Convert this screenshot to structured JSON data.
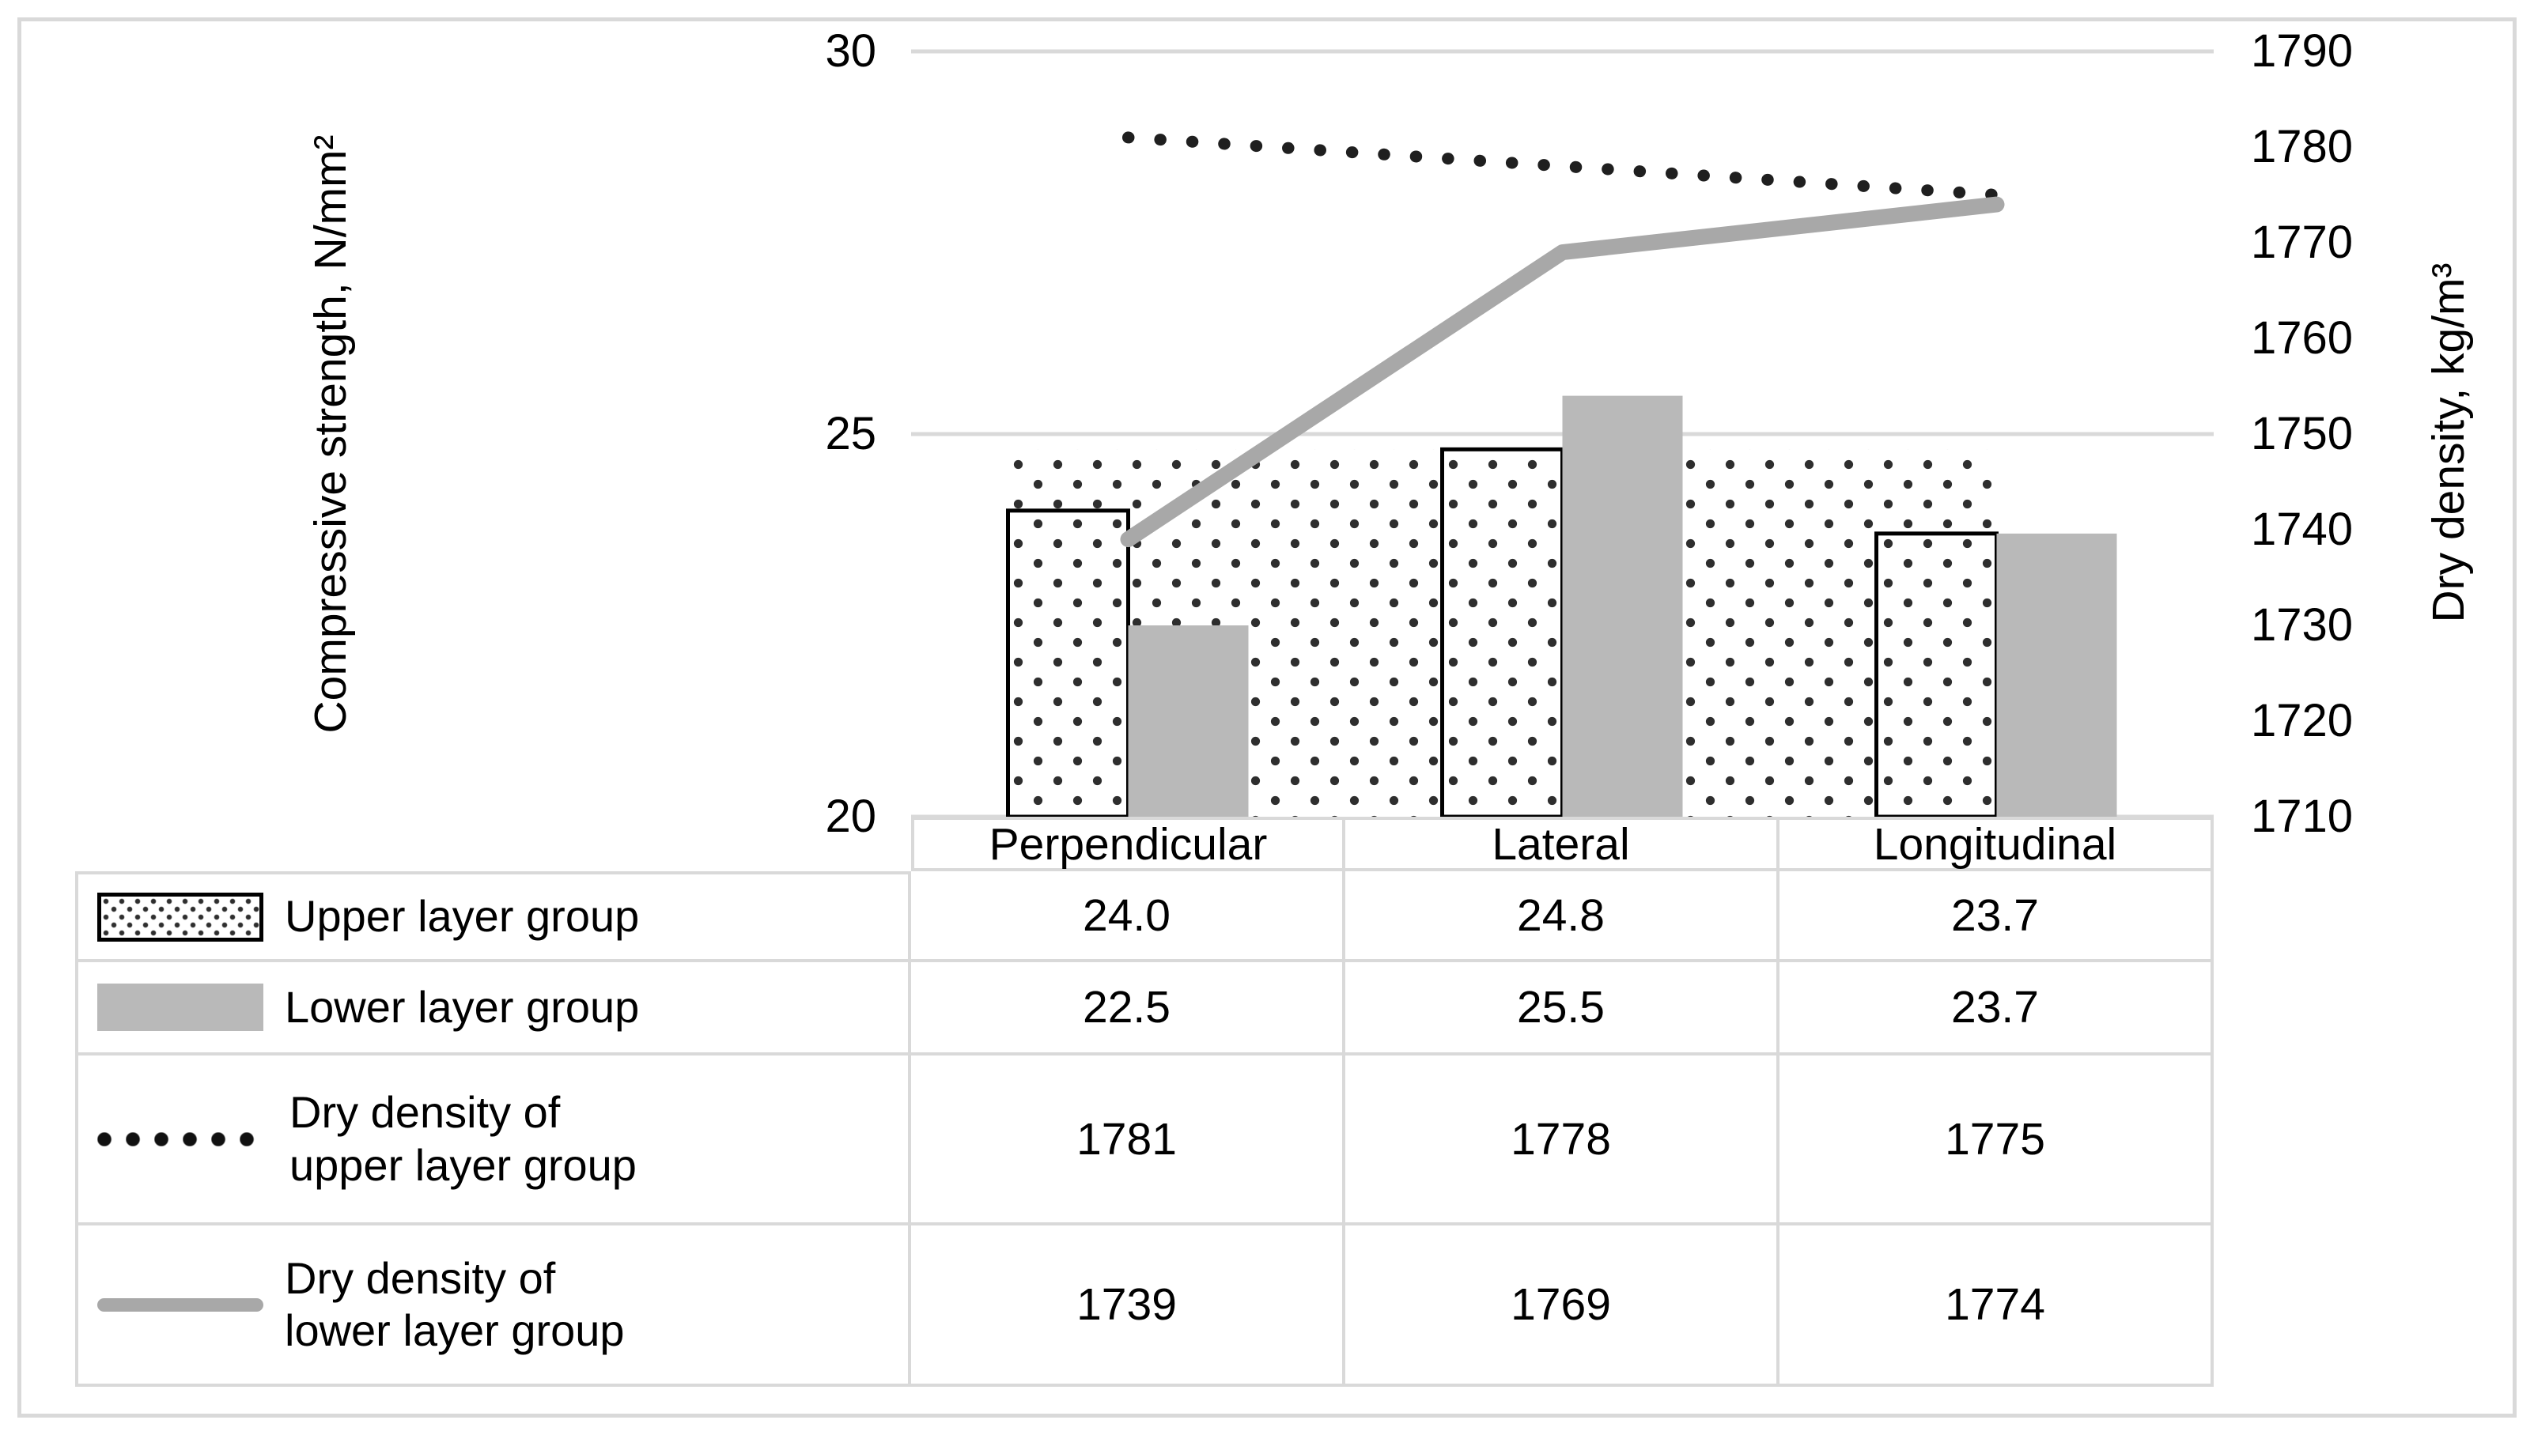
{
  "figure": {
    "background": "#ffffff",
    "border_color": "#d9d9d9"
  },
  "chart_data": {
    "type": "bar",
    "subtype": "combo bar + line, dual vertical axes, data table with legend keys below",
    "categories": [
      "Perpendicular",
      "Lateral",
      "Longitudinal"
    ],
    "left_axis": {
      "title": "Compressive strength, N/mm²",
      "min": 20,
      "max": 30,
      "tick_values": [
        30,
        25,
        20
      ],
      "tick_labels": [
        "30",
        "25",
        "20"
      ],
      "gridlines": true
    },
    "right_axis": {
      "title": "Dry density, kg/m³",
      "min": 1710,
      "max": 1790,
      "tick_values": [
        1790,
        1780,
        1770,
        1760,
        1750,
        1740,
        1730,
        1720,
        1710
      ],
      "tick_labels": [
        "1790",
        "1780",
        "1770",
        "1760",
        "1750",
        "1740",
        "1730",
        "1720",
        "1710"
      ]
    },
    "bar_series": [
      {
        "name": "Upper layer group",
        "axis": "left",
        "values": [
          24.0,
          24.8,
          23.7
        ],
        "display": [
          "24.0",
          "24.8",
          "23.7"
        ],
        "fill": "pattern-dots",
        "stroke": "#000000"
      },
      {
        "name": "Lower layer group",
        "axis": "left",
        "values": [
          22.5,
          25.5,
          23.7
        ],
        "display": [
          "22.5",
          "25.5",
          "23.7"
        ],
        "fill": "#b9b9b9",
        "stroke": "none"
      }
    ],
    "line_series": [
      {
        "name": "Dry density of upper layer group",
        "axis": "right",
        "values": [
          1781,
          1778,
          1775
        ],
        "display": [
          "1781",
          "1778",
          "1775"
        ],
        "stroke": "#1f1f1f",
        "width": 15,
        "dash": "0.5 40"
      },
      {
        "name": "Dry density of lower layer group",
        "axis": "right",
        "values": [
          1739,
          1769,
          1774
        ],
        "display": [
          "1739",
          "1769",
          "1774"
        ],
        "stroke": "#a8a8a8",
        "width": 20,
        "dash": null
      }
    ],
    "background_band": {
      "description": "dotted-pattern band behind bars, top at max upper-layer value, spanning from left edge of first upper bar to right edge of last upper bar",
      "top_value": 24.8
    },
    "colors": {
      "gray_bar": "#b9b9b9",
      "gray_line": "#a8a8a8",
      "gridline": "#d9d9d9",
      "pattern_dot": "#2e2e2e",
      "table_border": "#d9d9d9"
    }
  },
  "table": {
    "header": [
      "Perpendicular",
      "Lateral",
      "Longitudinal"
    ],
    "rows": [
      {
        "key": "dotted-rect",
        "label_lines": [
          "Upper layer group"
        ],
        "values": [
          "24.0",
          "24.8",
          "23.7"
        ]
      },
      {
        "key": "gray-rect",
        "label_lines": [
          "Lower layer group"
        ],
        "values": [
          "22.5",
          "25.5",
          "23.7"
        ]
      },
      {
        "key": "dotted-line",
        "label_lines": [
          "Dry density of",
          "upper layer group"
        ],
        "values": [
          "1781",
          "1778",
          "1775"
        ]
      },
      {
        "key": "gray-line",
        "label_lines": [
          "Dry density of",
          "lower layer group"
        ],
        "values": [
          "1739",
          "1769",
          "1774"
        ]
      }
    ]
  }
}
